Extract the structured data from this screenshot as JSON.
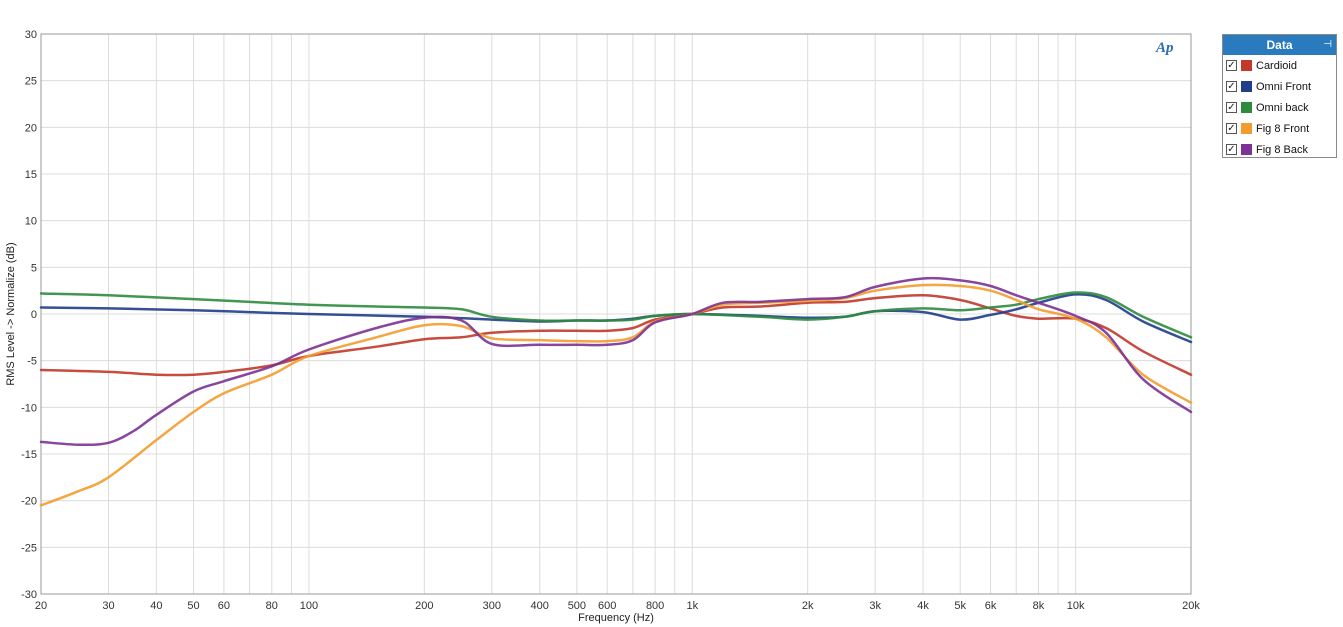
{
  "chart_data": {
    "type": "line",
    "xlabel": "Frequency (Hz)",
    "ylabel": "RMS Level -> Normalize (dB)",
    "xscale": "log",
    "xlim": [
      20,
      20000
    ],
    "ylim": [
      -30,
      30
    ],
    "grid": true,
    "legend_position": "top-right (outside)",
    "y_ticks": [
      30,
      25,
      20,
      15,
      10,
      5,
      0,
      -5,
      -10,
      -15,
      -20,
      -25,
      -30
    ],
    "x_ticks": [
      {
        "value": 20,
        "label": "20"
      },
      {
        "value": 30,
        "label": "30"
      },
      {
        "value": 40,
        "label": "40"
      },
      {
        "value": 50,
        "label": "50"
      },
      {
        "value": 60,
        "label": "60"
      },
      {
        "value": 80,
        "label": "80"
      },
      {
        "value": 100,
        "label": "100"
      },
      {
        "value": 200,
        "label": "200"
      },
      {
        "value": 300,
        "label": "300"
      },
      {
        "value": 400,
        "label": "400"
      },
      {
        "value": 500,
        "label": "500"
      },
      {
        "value": 600,
        "label": "600"
      },
      {
        "value": 800,
        "label": "800"
      },
      {
        "value": 1000,
        "label": "1k"
      },
      {
        "value": 2000,
        "label": "2k"
      },
      {
        "value": 3000,
        "label": "3k"
      },
      {
        "value": 4000,
        "label": "4k"
      },
      {
        "value": 5000,
        "label": "5k"
      },
      {
        "value": 6000,
        "label": "6k"
      },
      {
        "value": 8000,
        "label": "8k"
      },
      {
        "value": 10000,
        "label": "10k"
      },
      {
        "value": 20000,
        "label": "20k"
      }
    ],
    "series": [
      {
        "name": "Cardioid",
        "color": "#c0392b",
        "points": [
          [
            20,
            -6
          ],
          [
            30,
            -6.2
          ],
          [
            40,
            -6.5
          ],
          [
            50,
            -6.5
          ],
          [
            60,
            -6.2
          ],
          [
            80,
            -5.5
          ],
          [
            100,
            -4.5
          ],
          [
            150,
            -3.5
          ],
          [
            200,
            -2.7
          ],
          [
            250,
            -2.5
          ],
          [
            300,
            -2
          ],
          [
            400,
            -1.8
          ],
          [
            500,
            -1.8
          ],
          [
            600,
            -1.8
          ],
          [
            700,
            -1.5
          ],
          [
            800,
            -0.6
          ],
          [
            1000,
            0
          ],
          [
            1200,
            0.7
          ],
          [
            1500,
            0.8
          ],
          [
            2000,
            1.2
          ],
          [
            2500,
            1.3
          ],
          [
            3000,
            1.7
          ],
          [
            4000,
            2
          ],
          [
            5000,
            1.5
          ],
          [
            6000,
            0.6
          ],
          [
            7000,
            -0.2
          ],
          [
            8000,
            -0.5
          ],
          [
            10000,
            -0.5
          ],
          [
            12000,
            -1.5
          ],
          [
            15000,
            -4
          ],
          [
            20000,
            -6.5
          ]
        ]
      },
      {
        "name": "Omni Front",
        "color": "#1f3d8a",
        "points": [
          [
            20,
            0.7
          ],
          [
            30,
            0.6
          ],
          [
            50,
            0.4
          ],
          [
            70,
            0.2
          ],
          [
            100,
            0
          ],
          [
            200,
            -0.3
          ],
          [
            300,
            -0.6
          ],
          [
            400,
            -0.8
          ],
          [
            500,
            -0.7
          ],
          [
            600,
            -0.7
          ],
          [
            700,
            -0.5
          ],
          [
            800,
            -0.2
          ],
          [
            1000,
            0
          ],
          [
            1500,
            -0.2
          ],
          [
            2000,
            -0.4
          ],
          [
            2500,
            -0.3
          ],
          [
            3000,
            0.3
          ],
          [
            4000,
            0.2
          ],
          [
            5000,
            -0.6
          ],
          [
            6000,
            -0.1
          ],
          [
            7000,
            0.5
          ],
          [
            8000,
            1.2
          ],
          [
            10000,
            2.1
          ],
          [
            12000,
            1.5
          ],
          [
            15000,
            -0.8
          ],
          [
            20000,
            -3
          ]
        ]
      },
      {
        "name": "Omni back",
        "color": "#2e8b3e",
        "points": [
          [
            20,
            2.2
          ],
          [
            30,
            2
          ],
          [
            50,
            1.6
          ],
          [
            70,
            1.3
          ],
          [
            100,
            1
          ],
          [
            150,
            0.8
          ],
          [
            200,
            0.7
          ],
          [
            250,
            0.5
          ],
          [
            300,
            -0.3
          ],
          [
            400,
            -0.7
          ],
          [
            500,
            -0.7
          ],
          [
            600,
            -0.7
          ],
          [
            700,
            -0.6
          ],
          [
            800,
            -0.2
          ],
          [
            1000,
            0
          ],
          [
            1500,
            -0.3
          ],
          [
            2000,
            -0.6
          ],
          [
            2500,
            -0.3
          ],
          [
            3000,
            0.3
          ],
          [
            4000,
            0.6
          ],
          [
            5000,
            0.4
          ],
          [
            6000,
            0.7
          ],
          [
            7000,
            1
          ],
          [
            8000,
            1.6
          ],
          [
            10000,
            2.3
          ],
          [
            12000,
            1.8
          ],
          [
            15000,
            -0.3
          ],
          [
            20000,
            -2.5
          ]
        ]
      },
      {
        "name": "Fig 8 Front",
        "color": "#f39c2e",
        "points": [
          [
            20,
            -20.5
          ],
          [
            25,
            -19
          ],
          [
            30,
            -17.5
          ],
          [
            40,
            -13.5
          ],
          [
            50,
            -10.5
          ],
          [
            60,
            -8.5
          ],
          [
            80,
            -6.5
          ],
          [
            100,
            -4.5
          ],
          [
            150,
            -2.5
          ],
          [
            200,
            -1.2
          ],
          [
            250,
            -1.3
          ],
          [
            300,
            -2.6
          ],
          [
            400,
            -2.8
          ],
          [
            500,
            -2.9
          ],
          [
            600,
            -2.9
          ],
          [
            700,
            -2.5
          ],
          [
            800,
            -0.8
          ],
          [
            1000,
            0
          ],
          [
            1200,
            1
          ],
          [
            1500,
            1.2
          ],
          [
            2000,
            1.4
          ],
          [
            2500,
            1.7
          ],
          [
            3000,
            2.5
          ],
          [
            4000,
            3.1
          ],
          [
            5000,
            3
          ],
          [
            6000,
            2.5
          ],
          [
            7000,
            1.5
          ],
          [
            8000,
            0.5
          ],
          [
            10000,
            -0.5
          ],
          [
            12000,
            -2.5
          ],
          [
            15000,
            -6.5
          ],
          [
            20000,
            -9.5
          ]
        ]
      },
      {
        "name": "Fig 8 Back",
        "color": "#7b3294",
        "points": [
          [
            20,
            -13.7
          ],
          [
            25,
            -14
          ],
          [
            30,
            -13.8
          ],
          [
            35,
            -12.5
          ],
          [
            40,
            -10.8
          ],
          [
            50,
            -8.3
          ],
          [
            60,
            -7.2
          ],
          [
            80,
            -5.6
          ],
          [
            100,
            -3.8
          ],
          [
            150,
            -1.5
          ],
          [
            200,
            -0.4
          ],
          [
            250,
            -0.7
          ],
          [
            300,
            -3.2
          ],
          [
            400,
            -3.3
          ],
          [
            500,
            -3.3
          ],
          [
            600,
            -3.3
          ],
          [
            700,
            -2.8
          ],
          [
            800,
            -0.9
          ],
          [
            1000,
            0
          ],
          [
            1200,
            1.2
          ],
          [
            1500,
            1.3
          ],
          [
            2000,
            1.6
          ],
          [
            2500,
            1.8
          ],
          [
            3000,
            2.9
          ],
          [
            4000,
            3.8
          ],
          [
            5000,
            3.6
          ],
          [
            6000,
            3
          ],
          [
            7000,
            2
          ],
          [
            8000,
            1.2
          ],
          [
            10000,
            -0.2
          ],
          [
            12000,
            -2
          ],
          [
            15000,
            -7
          ],
          [
            20000,
            -10.5
          ]
        ]
      }
    ]
  },
  "legend": {
    "title": "Data",
    "items": [
      {
        "label": "Cardioid",
        "color": "#c0392b",
        "checked": true
      },
      {
        "label": "Omni Front",
        "color": "#1f3d8a",
        "checked": true
      },
      {
        "label": "Omni back",
        "color": "#2e8b3e",
        "checked": true
      },
      {
        "label": "Fig 8 Front",
        "color": "#f39c2e",
        "checked": true
      },
      {
        "label": "Fig 8 Back",
        "color": "#7b3294",
        "checked": true
      }
    ]
  },
  "logo": {
    "text": "Ap"
  }
}
